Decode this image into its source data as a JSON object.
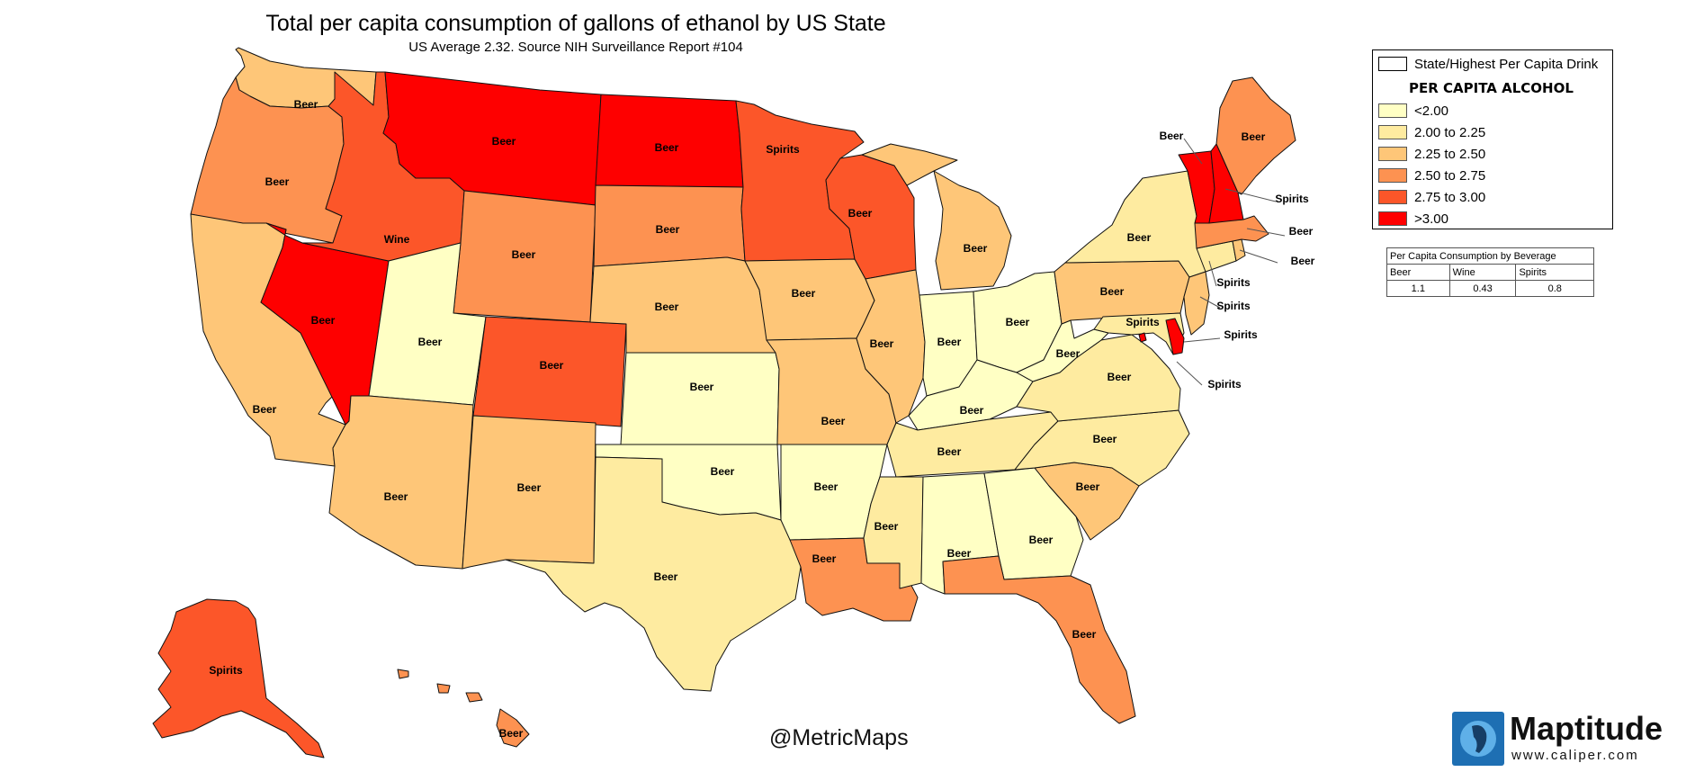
{
  "title": "Total per capita consumption of gallons of ethanol by US State",
  "subtitle": "US Average 2.32.  Source NIH Surveillance Report #104",
  "legend": {
    "header_box_label": "State/Highest Per Capita Drink",
    "heading": "PER CAPITA ALCOHOL",
    "classes": [
      {
        "label": "<2.00",
        "color": "#FFFFC4"
      },
      {
        "label": "2.00 to 2.25",
        "color": "#FEEBA0"
      },
      {
        "label": "2.25 to 2.50",
        "color": "#FEC678"
      },
      {
        "label": "2.50 to 2.75",
        "color": "#FD9251"
      },
      {
        "label": "2.75 to 3.00",
        "color": "#FC5629"
      },
      {
        "label": ">3.00",
        "color": "#FE0000"
      }
    ]
  },
  "beverage_table": {
    "title": "Per Capita Consumption by Beverage",
    "headers": [
      "Beer",
      "Wine",
      "Spirits"
    ],
    "values": [
      "1.1",
      "0.43",
      "0.8"
    ]
  },
  "handle": "@MetricMaps",
  "logo": {
    "name": "Maptitude",
    "url": "www.caliper.com"
  },
  "states": {
    "WA": {
      "drink": "Beer",
      "class": 2
    },
    "OR": {
      "drink": "Beer",
      "class": 3
    },
    "CA": {
      "drink": "Beer",
      "class": 2
    },
    "NV": {
      "drink": "Beer",
      "class": 5
    },
    "ID": {
      "drink": "Wine",
      "class": 4
    },
    "MT": {
      "drink": "Beer",
      "class": 5
    },
    "WY": {
      "drink": "Beer",
      "class": 3
    },
    "UT": {
      "drink": "Beer",
      "class": 0
    },
    "AZ": {
      "drink": "Beer",
      "class": 2
    },
    "CO": {
      "drink": "Beer",
      "class": 4
    },
    "NM": {
      "drink": "Beer",
      "class": 2
    },
    "ND": {
      "drink": "Beer",
      "class": 5
    },
    "SD": {
      "drink": "Beer",
      "class": 3
    },
    "NE": {
      "drink": "Beer",
      "class": 2
    },
    "KS": {
      "drink": "Beer",
      "class": 0
    },
    "OK": {
      "drink": "Beer",
      "class": 0
    },
    "TX": {
      "drink": "Beer",
      "class": 1
    },
    "MN": {
      "drink": "Spirits",
      "class": 4
    },
    "IA": {
      "drink": "Beer",
      "class": 2
    },
    "MO": {
      "drink": "Beer",
      "class": 2
    },
    "AR": {
      "drink": "Beer",
      "class": 0
    },
    "LA": {
      "drink": "Beer",
      "class": 3
    },
    "WI": {
      "drink": "Beer",
      "class": 4
    },
    "IL": {
      "drink": "Beer",
      "class": 2
    },
    "MI": {
      "drink": "Beer",
      "class": 2
    },
    "IN": {
      "drink": "Beer",
      "class": 0
    },
    "OH": {
      "drink": "Beer",
      "class": 0
    },
    "KY": {
      "drink": "Beer",
      "class": 0
    },
    "TN": {
      "drink": "Beer",
      "class": 1
    },
    "MS": {
      "drink": "Beer",
      "class": 1
    },
    "AL": {
      "drink": "Beer",
      "class": 0
    },
    "GA": {
      "drink": "Beer",
      "class": 0
    },
    "FL": {
      "drink": "Beer",
      "class": 3
    },
    "SC": {
      "drink": "Beer",
      "class": 2
    },
    "NC": {
      "drink": "Beer",
      "class": 1
    },
    "VA": {
      "drink": "Beer",
      "class": 1
    },
    "WV": {
      "drink": "Beer",
      "class": 0
    },
    "PA": {
      "drink": "Beer",
      "class": 2
    },
    "NY": {
      "drink": "Beer",
      "class": 1
    },
    "VT": {
      "drink": "Beer",
      "class": 5
    },
    "NH": {
      "drink": "Spirits",
      "class": 5
    },
    "ME": {
      "drink": "Beer",
      "class": 3
    },
    "MA": {
      "drink": "Beer",
      "class": 3
    },
    "RI": {
      "drink": "Beer",
      "class": 2
    },
    "CT": {
      "drink": "Spirits",
      "class": 1
    },
    "NJ": {
      "drink": "Spirits",
      "class": 2
    },
    "DE": {
      "drink": "Spirits",
      "class": 5
    },
    "MD": {
      "drink": "Spirits",
      "class": 1
    },
    "DC": {
      "drink": "Spirits",
      "class": 5
    },
    "AK": {
      "drink": "Spirits",
      "class": 4
    },
    "HI": {
      "drink": "Beer",
      "class": 3
    }
  }
}
